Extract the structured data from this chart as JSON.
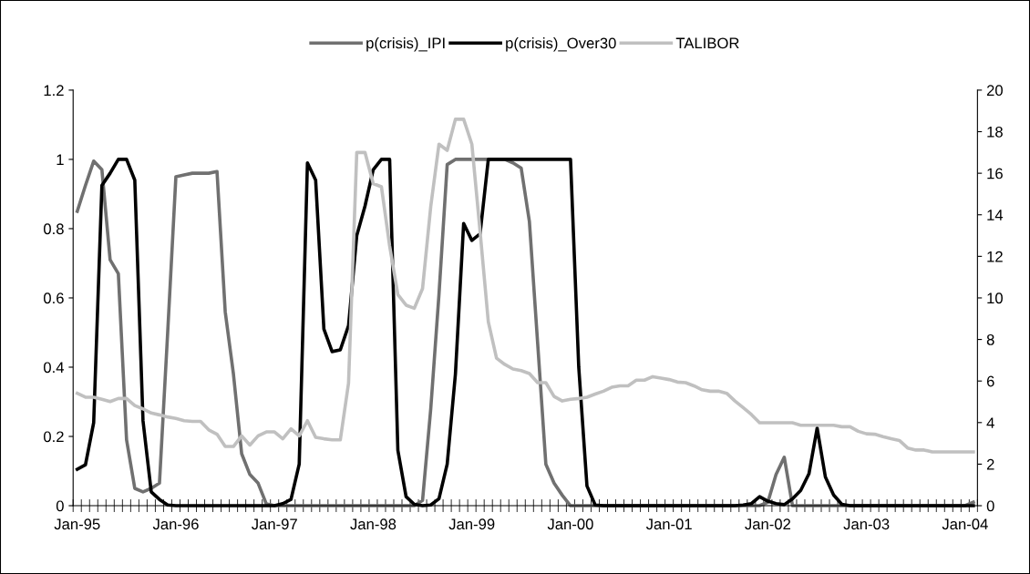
{
  "chart_data": {
    "type": "line",
    "categories": [
      "Jan-95",
      null,
      null,
      null,
      null,
      null,
      null,
      null,
      null,
      null,
      null,
      null,
      "Jan-96",
      null,
      null,
      null,
      null,
      null,
      null,
      null,
      null,
      null,
      null,
      null,
      "Jan-97",
      null,
      null,
      null,
      null,
      null,
      null,
      null,
      null,
      null,
      null,
      null,
      "Jan-98",
      null,
      null,
      null,
      null,
      null,
      null,
      null,
      null,
      null,
      null,
      null,
      "Jan-99",
      null,
      null,
      null,
      null,
      null,
      null,
      null,
      null,
      null,
      null,
      null,
      "Jan-00",
      null,
      null,
      null,
      null,
      null,
      null,
      null,
      null,
      null,
      null,
      null,
      "Jan-01",
      null,
      null,
      null,
      null,
      null,
      null,
      null,
      null,
      null,
      null,
      null,
      "Jan-02",
      null,
      null,
      null,
      null,
      null,
      null,
      null,
      null,
      null,
      null,
      null,
      "Jan-03",
      null,
      null,
      null,
      null,
      null,
      null,
      null,
      null,
      null,
      null,
      null,
      "Jan-04",
      null
    ],
    "series": [
      {
        "name": "p(crisis)_IPI",
        "color": "#707070",
        "values": [
          0.85,
          0.925,
          0.995,
          0.97,
          0.71,
          0.67,
          0.19,
          0.05,
          0.04,
          0.05,
          0.065,
          0.5,
          0.95,
          0.955,
          0.96,
          0.96,
          0.96,
          0.965,
          0.56,
          0.38,
          0.15,
          0.09,
          0.065,
          0.005,
          0,
          0,
          0,
          0,
          0,
          0,
          0,
          0,
          0,
          0,
          0,
          0,
          0,
          0,
          0,
          0,
          0,
          0,
          0.015,
          0.28,
          0.61,
          0.985,
          1,
          1,
          1,
          1,
          1,
          1,
          1,
          0.99,
          0.975,
          0.82,
          0.47,
          0.12,
          0.065,
          0.03,
          0,
          0,
          0,
          0,
          0,
          0,
          0,
          0,
          0,
          0,
          0,
          0,
          0,
          0,
          0,
          0,
          0,
          0,
          0,
          0,
          0,
          0,
          0,
          0,
          0.01,
          0.09,
          0.14,
          0,
          0,
          0,
          0,
          0,
          0,
          0,
          0,
          0,
          0,
          0,
          0,
          0,
          0,
          0,
          0,
          0,
          0,
          0,
          0,
          0,
          0,
          0.01
        ]
      },
      {
        "name": "p(crisis)_Over30",
        "color": "#000000",
        "values": [
          0.105,
          0.118,
          0.24,
          0.925,
          0.96,
          1,
          1,
          0.94,
          0.245,
          0.04,
          0.018,
          0.002,
          0,
          0,
          0,
          0,
          0,
          0,
          0,
          0,
          0,
          0,
          0,
          0,
          0,
          0.006,
          0.018,
          0.12,
          0.99,
          0.94,
          0.51,
          0.445,
          0.45,
          0.52,
          0.78,
          0.865,
          0.97,
          1,
          1,
          0.16,
          0.026,
          0.004,
          0,
          0.002,
          0.02,
          0.12,
          0.38,
          0.815,
          0.766,
          0.785,
          1,
          1,
          1,
          1,
          1,
          1,
          1,
          1,
          1,
          1,
          1,
          0.4,
          0.057,
          0.002,
          0,
          0,
          0,
          0,
          0,
          0,
          0,
          0,
          0,
          0,
          0,
          0,
          0,
          0,
          0,
          0,
          0,
          0.002,
          0.006,
          0.026,
          0.013,
          0.006,
          0.003,
          0.02,
          0.044,
          0.092,
          0.224,
          0.083,
          0.031,
          0.004,
          0,
          0,
          0,
          0,
          0,
          0,
          0,
          0,
          0,
          0,
          0,
          0,
          0,
          0,
          0,
          0
        ]
      },
      {
        "name": "TALIBOR",
        "color": "#c0c0c0",
        "axis": "y2",
        "values": [
          5.41,
          5.22,
          5.22,
          5.12,
          5.01,
          5.16,
          5.16,
          4.82,
          4.66,
          4.46,
          4.37,
          4.27,
          4.2,
          4.09,
          4.06,
          4.06,
          3.65,
          3.44,
          2.85,
          2.85,
          3.36,
          2.92,
          3.36,
          3.55,
          3.55,
          3.22,
          3.7,
          3.36,
          4.09,
          3.29,
          3.22,
          3.17,
          3.17,
          5.9,
          17.0,
          17.0,
          15.5,
          15.35,
          12.5,
          10.16,
          9.65,
          9.5,
          10.45,
          14.4,
          17.4,
          17.1,
          18.6,
          18.6,
          17.4,
          13.2,
          8.85,
          7.1,
          6.8,
          6.58,
          6.5,
          6.36,
          5.92,
          5.92,
          5.26,
          5.04,
          5.12,
          5.16,
          5.22,
          5.37,
          5.51,
          5.7,
          5.77,
          5.77,
          6.04,
          6.04,
          6.21,
          6.14,
          6.07,
          5.95,
          5.92,
          5.77,
          5.58,
          5.51,
          5.51,
          5.41,
          5.04,
          4.72,
          4.39,
          3.99,
          3.99,
          3.99,
          3.99,
          3.99,
          3.87,
          3.87,
          3.87,
          3.87,
          3.87,
          3.8,
          3.8,
          3.58,
          3.46,
          3.44,
          3.32,
          3.22,
          3.14,
          2.78,
          2.68,
          2.68,
          2.59,
          2.59,
          2.59,
          2.59,
          2.59,
          2.59
        ]
      }
    ],
    "ylim": [
      0,
      1.2
    ],
    "yticks": [
      0,
      0.2,
      0.4,
      0.6,
      0.8,
      1,
      1.2
    ],
    "y2lim": [
      0,
      20
    ],
    "y2ticks": [
      0,
      2,
      4,
      6,
      8,
      10,
      12,
      14,
      16,
      18,
      20
    ],
    "legend": "top",
    "grid": false,
    "marker": "none",
    "line_style": "solid"
  }
}
